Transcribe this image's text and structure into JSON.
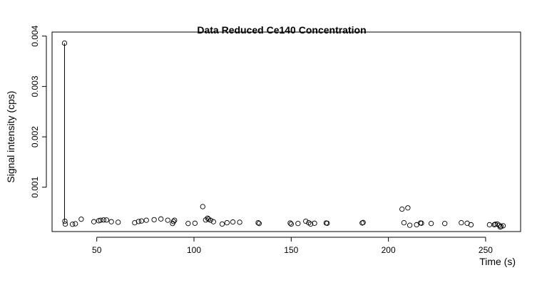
{
  "chart_data": {
    "type": "scatter",
    "title": "Data Reduced Ce140 Concentration",
    "xlabel": "Time (s)",
    "ylabel": "Signal intensity (cps)",
    "xlim": [
      27,
      268
    ],
    "ylim": [
      0.00012,
      0.00408
    ],
    "x_ticks": [
      50,
      100,
      150,
      200,
      250
    ],
    "x_tick_labels": [
      "50",
      "100",
      "150",
      "200",
      "250"
    ],
    "y_ticks": [
      0.001,
      0.002,
      0.003,
      0.004
    ],
    "y_tick_labels": [
      "0.001",
      "0.002",
      "0.003",
      "0.004"
    ],
    "grid": false,
    "legend": "none",
    "series": [
      {
        "marker": "open-circle",
        "color": "#000000",
        "x": [
          33.4,
          33.6,
          33.8,
          37.5,
          39.0,
          42.0,
          48.5,
          51.0,
          52.0,
          53.5,
          55.0,
          57.5,
          61.0,
          69.5,
          71.5,
          73.0,
          75.5,
          79.5,
          83.0,
          86.5,
          89.0,
          89.5,
          90.0,
          97.0,
          100.5,
          104.5,
          106.0,
          107.0,
          107.5,
          108.5,
          110.0,
          114.5,
          117.0,
          120.0,
          123.5,
          133.0,
          133.5,
          149.5,
          150.0,
          153.5,
          157.5,
          159.0,
          160.0,
          162.0,
          168.0,
          168.5,
          186.5,
          187.0,
          207.0,
          208.0,
          210.0,
          211.0,
          214.5,
          216.5,
          217.0,
          222.0,
          229.0,
          237.5,
          240.5,
          242.5,
          252.0,
          254.5,
          255.0,
          256.0,
          257.0,
          257.5,
          258.0,
          259.0
        ],
        "y": [
          0.00386,
          0.000325,
          0.00027,
          0.000265,
          0.000275,
          0.000365,
          0.000315,
          0.000335,
          0.000345,
          0.00035,
          0.00035,
          0.000315,
          0.000305,
          0.000295,
          0.00032,
          0.00033,
          0.000345,
          0.000355,
          0.00037,
          0.000345,
          0.00028,
          0.00032,
          0.000345,
          0.00028,
          0.000285,
          0.000615,
          0.00035,
          0.000385,
          0.000365,
          0.000345,
          0.000315,
          0.00027,
          0.000295,
          0.00031,
          0.000305,
          0.000295,
          0.00028,
          0.00029,
          0.00027,
          0.00028,
          0.000325,
          0.000295,
          0.00027,
          0.000285,
          0.00029,
          0.000285,
          0.00029,
          0.0003,
          0.000565,
          0.000295,
          0.00059,
          0.000245,
          0.000255,
          0.00029,
          0.000285,
          0.00028,
          0.00028,
          0.000295,
          0.000285,
          0.000255,
          0.000255,
          0.000255,
          0.000265,
          0.00027,
          0.000245,
          0.00021,
          0.00022,
          0.000235
        ]
      }
    ],
    "annotations": [
      {
        "type": "segment",
        "x": [
          33.4,
          33.4
        ],
        "y": [
          0.00386,
          0.000325
        ]
      }
    ]
  }
}
